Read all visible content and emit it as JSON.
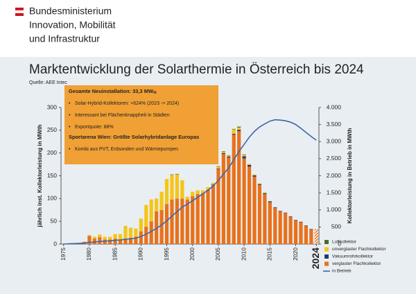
{
  "header": {
    "lines": [
      "Bundesministerium",
      "Innovation, Mobilität",
      "und Infrastruktur"
    ]
  },
  "chart_data": {
    "type": "bar",
    "title": "Marktentwicklung der Solarthermie in Österreich bis 2024",
    "source": "Quelle: AEE Intec",
    "y_label": "jährlich inst. Kollektorleistung in MWth",
    "y2_label": "Kollektorleistung in Betrieb in MWth",
    "annotation": {
      "heading": "Gesamte Neuinstallation: 33,3 MW",
      "heading_sub": "th",
      "bullets": [
        "Solar-Hybrid-Kollektoren: +624%  (2023 -> 2024)",
        "Interessant bei Flächenknappheit in Städten",
        "Exportquote: 88%"
      ],
      "heading2": "Sportarena Wien: Größte Solarhybridanlage Europas",
      "bullets2": [
        "Kombi aus PVT, Erdsonden und Wärmepumpen"
      ]
    },
    "x": [
      1975,
      1976,
      1977,
      1978,
      1979,
      1980,
      1981,
      1982,
      1983,
      1984,
      1985,
      1986,
      1987,
      1988,
      1989,
      1990,
      1991,
      1992,
      1993,
      1994,
      1995,
      1996,
      1997,
      1998,
      1999,
      2000,
      2001,
      2002,
      2003,
      2004,
      2005,
      2006,
      2007,
      2008,
      2009,
      2010,
      2011,
      2012,
      2013,
      2014,
      2015,
      2016,
      2017,
      2018,
      2019,
      2020,
      2021,
      2022,
      2023,
      2024
    ],
    "xlim": [
      1974.5,
      2024.5
    ],
    "xticks": [
      1975,
      1980,
      1985,
      1990,
      1995,
      2000,
      2005,
      2010,
      2015,
      2020,
      2024
    ],
    "ylim": [
      0,
      300
    ],
    "yticks": [
      0,
      50,
      100,
      150,
      200,
      250,
      300
    ],
    "y2lim": [
      0,
      4000
    ],
    "y2ticks": [
      0,
      500,
      {
        "value": 1000,
        "label": "1.000"
      },
      {
        "value": 1500,
        "label": "1.500"
      },
      {
        "value": 2000,
        "label": "2.000"
      },
      {
        "value": 2500,
        "label": "2.500"
      },
      {
        "value": 3000,
        "label": "3.000"
      },
      {
        "value": 3500,
        "label": "3.500"
      },
      {
        "value": 4000,
        "label": "4.000"
      }
    ],
    "hatch_last": true,
    "series": [
      {
        "name": "Luftkollektor",
        "color": "#4a6b2a",
        "values": [
          0,
          0,
          0,
          0,
          0,
          0,
          0,
          0,
          0,
          0,
          0,
          0,
          0,
          0,
          0,
          0,
          0,
          0,
          0,
          0,
          0,
          1,
          1,
          0,
          0,
          0,
          0,
          0,
          0,
          0,
          1,
          1,
          1,
          1,
          2,
          1,
          0,
          0,
          0,
          0,
          0,
          0,
          0,
          0,
          0,
          0,
          0,
          0,
          0,
          0
        ]
      },
      {
        "name": "unverglaster Flachkollektor",
        "color": "#f5c518",
        "values": [
          0,
          0,
          0,
          0,
          0,
          2,
          4,
          6,
          6,
          6,
          10,
          12,
          28,
          22,
          18,
          28,
          48,
          48,
          28,
          40,
          55,
          54,
          53,
          40,
          6,
          10,
          8,
          6,
          6,
          4,
          4,
          3,
          2,
          10,
          5,
          3,
          2,
          2,
          1,
          1,
          0,
          0,
          0,
          0,
          0,
          0,
          0,
          0,
          0,
          0
        ]
      },
      {
        "name": "Vakuumrohrkollektor",
        "color": "#1f3a6e",
        "values": [
          0,
          0,
          0,
          0,
          0,
          0,
          0,
          0,
          0,
          0,
          0,
          0,
          0,
          0,
          0,
          0,
          0,
          0,
          0,
          0,
          0,
          0,
          0,
          0,
          0,
          0,
          0,
          0,
          1,
          1,
          1,
          2,
          2,
          2,
          3,
          5,
          4,
          3,
          2,
          2,
          2,
          1,
          1,
          1,
          1,
          1,
          1,
          1,
          1,
          0
        ]
      },
      {
        "name": "verglaster Flachkollektor",
        "color": "#e8711c",
        "values": [
          1,
          1,
          2,
          3,
          5,
          18,
          12,
          15,
          10,
          10,
          12,
          10,
          12,
          14,
          16,
          28,
          38,
          50,
          72,
          75,
          88,
          98,
          100,
          100,
          98,
          105,
          110,
          112,
          118,
          130,
          165,
          198,
          190,
          240,
          248,
          188,
          170,
          148,
          130,
          110,
          92,
          80,
          72,
          68,
          60,
          52,
          48,
          40,
          32,
          33
        ]
      },
      {
        "name": "in Betrieb",
        "color": "#3a67a8",
        "axis": "y2",
        "values": [
          0,
          10,
          15,
          20,
          30,
          50,
          60,
          75,
          85,
          95,
          110,
          120,
          140,
          155,
          175,
          220,
          290,
          370,
          460,
          560,
          680,
          820,
          950,
          1080,
          1170,
          1270,
          1370,
          1470,
          1580,
          1700,
          1860,
          2050,
          2230,
          2470,
          2710,
          2920,
          3130,
          3300,
          3430,
          3520,
          3600,
          3640,
          3630,
          3610,
          3570,
          3500,
          3390,
          3270,
          3150,
          3040
        ]
      }
    ]
  }
}
